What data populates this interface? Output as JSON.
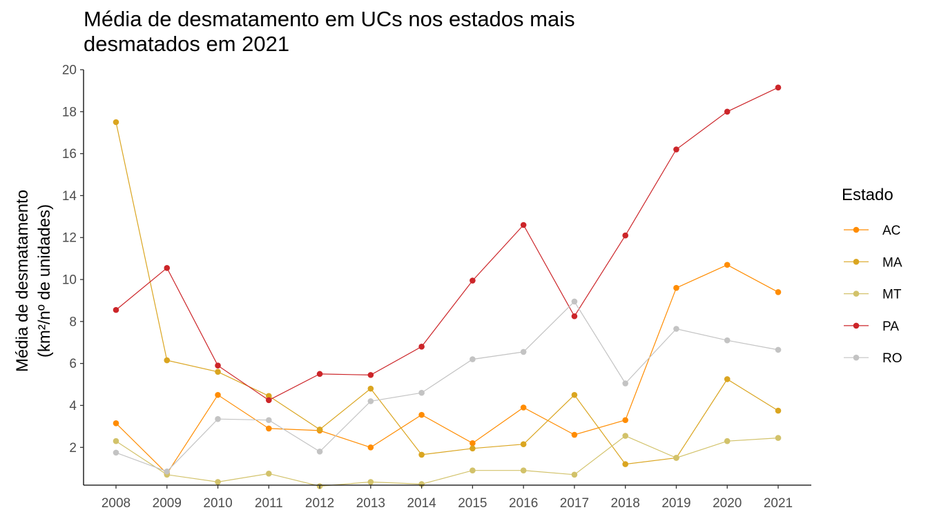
{
  "chart_data": {
    "type": "line",
    "title": "Média de desmatamento em UCs nos estados mais\ndesmatados em 2021",
    "ylabel_line1": "Média de desmatamento",
    "ylabel_line2": "(km²/nº de unidades)",
    "xlabel": "",
    "x": [
      "2008",
      "2009",
      "2010",
      "2011",
      "2012",
      "2013",
      "2014",
      "2015",
      "2016",
      "2017",
      "2018",
      "2019",
      "2020",
      "2021"
    ],
    "ylim": [
      0.2,
      20
    ],
    "yticks": [
      2,
      4,
      6,
      8,
      10,
      12,
      14,
      16,
      18,
      20
    ],
    "grid": false,
    "legend": {
      "title": "Estado",
      "position": "right"
    },
    "series": [
      {
        "name": "AC",
        "color": "#FF8C00",
        "values": [
          3.15,
          0.75,
          4.5,
          2.9,
          2.8,
          2.0,
          3.55,
          2.2,
          3.9,
          2.6,
          3.3,
          9.6,
          10.7,
          9.4
        ]
      },
      {
        "name": "MA",
        "color": "#DAA520",
        "values": [
          17.5,
          6.15,
          5.6,
          4.45,
          2.85,
          4.8,
          1.65,
          1.95,
          2.15,
          4.5,
          1.2,
          1.5,
          5.25,
          3.75
        ]
      },
      {
        "name": "MT",
        "color": "#D2C26A",
        "values": [
          2.3,
          0.7,
          0.35,
          0.75,
          0.15,
          0.35,
          0.25,
          0.9,
          0.9,
          0.7,
          2.55,
          1.5,
          2.3,
          2.45
        ]
      },
      {
        "name": "PA",
        "color": "#CC2529",
        "values": [
          8.55,
          10.55,
          5.9,
          4.25,
          5.5,
          5.45,
          6.8,
          9.95,
          12.6,
          8.25,
          12.1,
          16.2,
          18.0,
          19.15
        ]
      },
      {
        "name": "RO",
        "color": "#C3C3C3",
        "values": [
          1.75,
          0.85,
          3.35,
          3.3,
          1.8,
          4.2,
          4.6,
          6.2,
          6.55,
          8.95,
          5.05,
          7.65,
          7.1,
          6.65
        ]
      }
    ]
  }
}
